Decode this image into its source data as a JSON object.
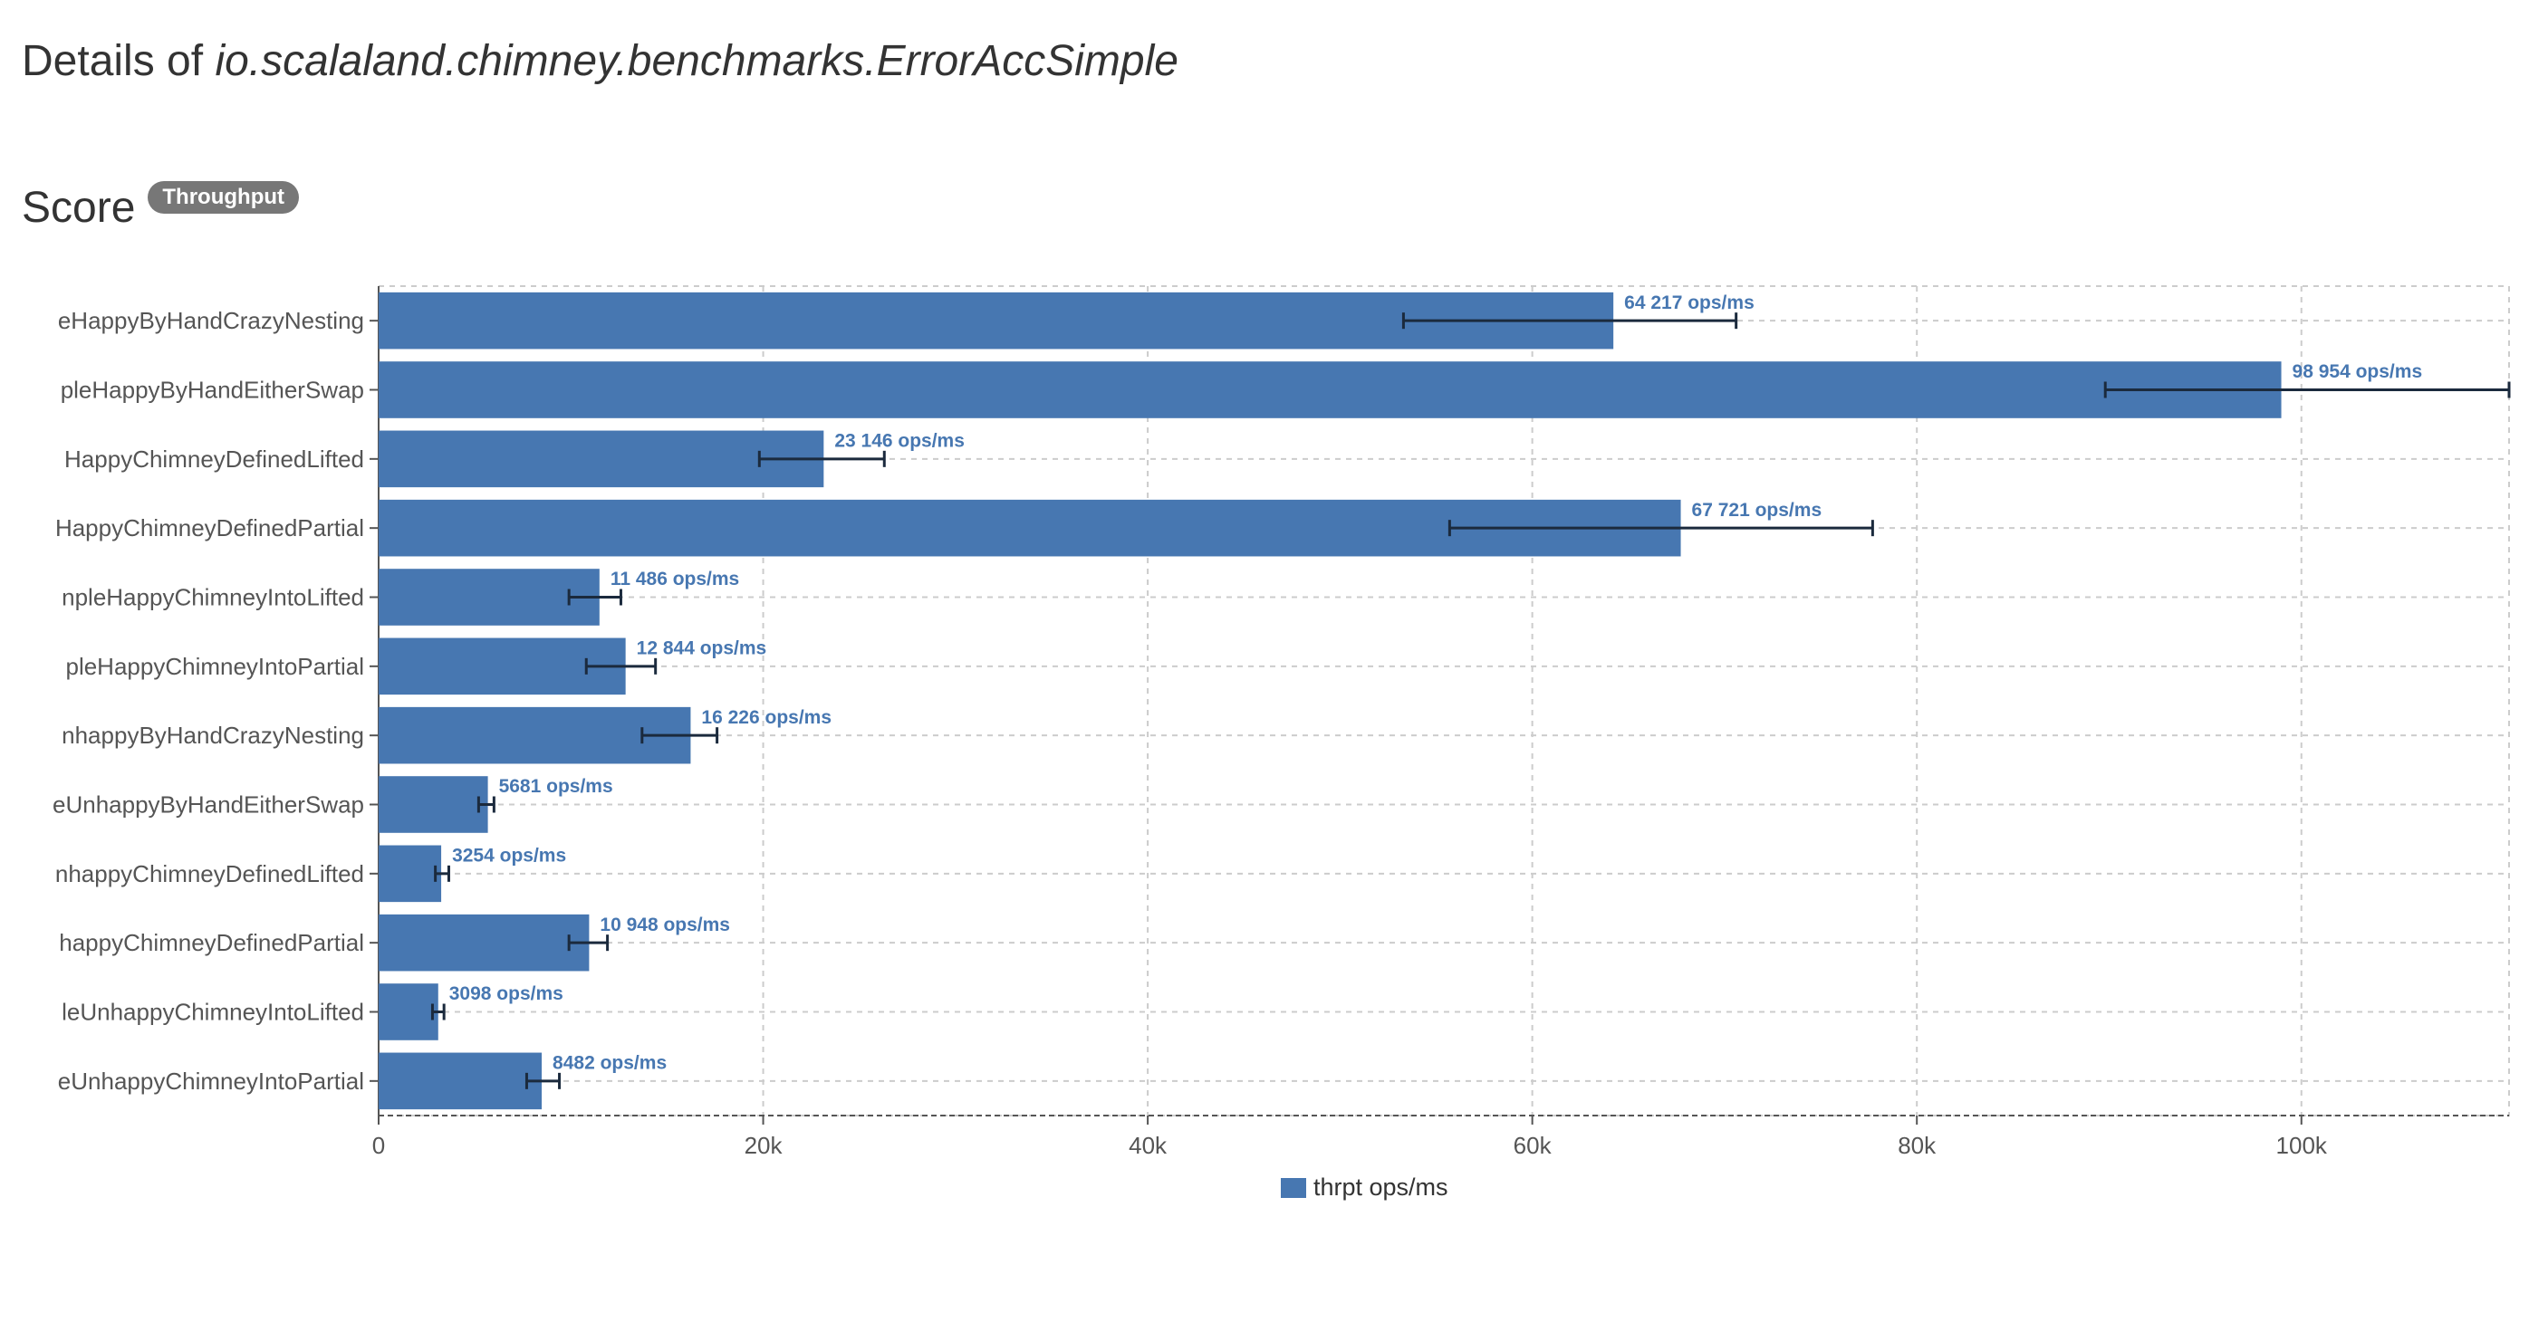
{
  "page": {
    "title_prefix": "Details of",
    "title_class": "io.scalaland.chimney.benchmarks.ErrorAccSimple"
  },
  "section": {
    "title": "Score",
    "badge": "Throughput"
  },
  "colors": {
    "bar": "#4777b1",
    "error_bar": "#1b2a3d",
    "grid": "#cccccc",
    "label": "#4777b1"
  },
  "chart_data": {
    "type": "bar",
    "orientation": "horizontal",
    "categories": [
      "eHappyByHandCrazyNesting",
      "pleHappyByHandEitherSwap",
      "HappyChimneyDefinedLifted",
      "HappyChimneyDefinedPartial",
      "npleHappyChimneyIntoLifted",
      "pleHappyChimneyIntoPartial",
      "nhappyByHandCrazyNesting",
      "eUnhappyByHandEitherSwap",
      "nhappyChimneyDefinedLifted",
      "happyChimneyDefinedPartial",
      "leUnhappyChimneyIntoLifted",
      "eUnhappyChimneyIntoPartial"
    ],
    "series": [
      {
        "name": "thrpt ops/ms",
        "values": [
          64217,
          98954,
          23146,
          67721,
          11486,
          12844,
          16226,
          5681,
          3254,
          10948,
          3098,
          8482
        ],
        "error_low": [
          53300,
          89800,
          19800,
          55700,
          9900,
          10800,
          13700,
          5200,
          2950,
          9900,
          2800,
          7700
        ],
        "error_high": [
          70600,
          110800,
          26300,
          77700,
          12600,
          14400,
          17600,
          6000,
          3650,
          11900,
          3400,
          9400
        ],
        "labels": [
          "64 217 ops/ms",
          "98 954 ops/ms",
          "23 146 ops/ms",
          "67 721 ops/ms",
          "11 486 ops/ms",
          "12 844 ops/ms",
          "16 226 ops/ms",
          "5681 ops/ms",
          "3254 ops/ms",
          "10 948 ops/ms",
          "3098 ops/ms",
          "8482 ops/ms"
        ]
      }
    ],
    "xlim": [
      0,
      110800
    ],
    "xticks": [
      0,
      20000,
      40000,
      60000,
      80000,
      100000
    ],
    "xtick_labels": [
      "0",
      "20k",
      "40k",
      "60k",
      "80k",
      "100k"
    ],
    "grid": true,
    "legend": "bottom-center"
  }
}
